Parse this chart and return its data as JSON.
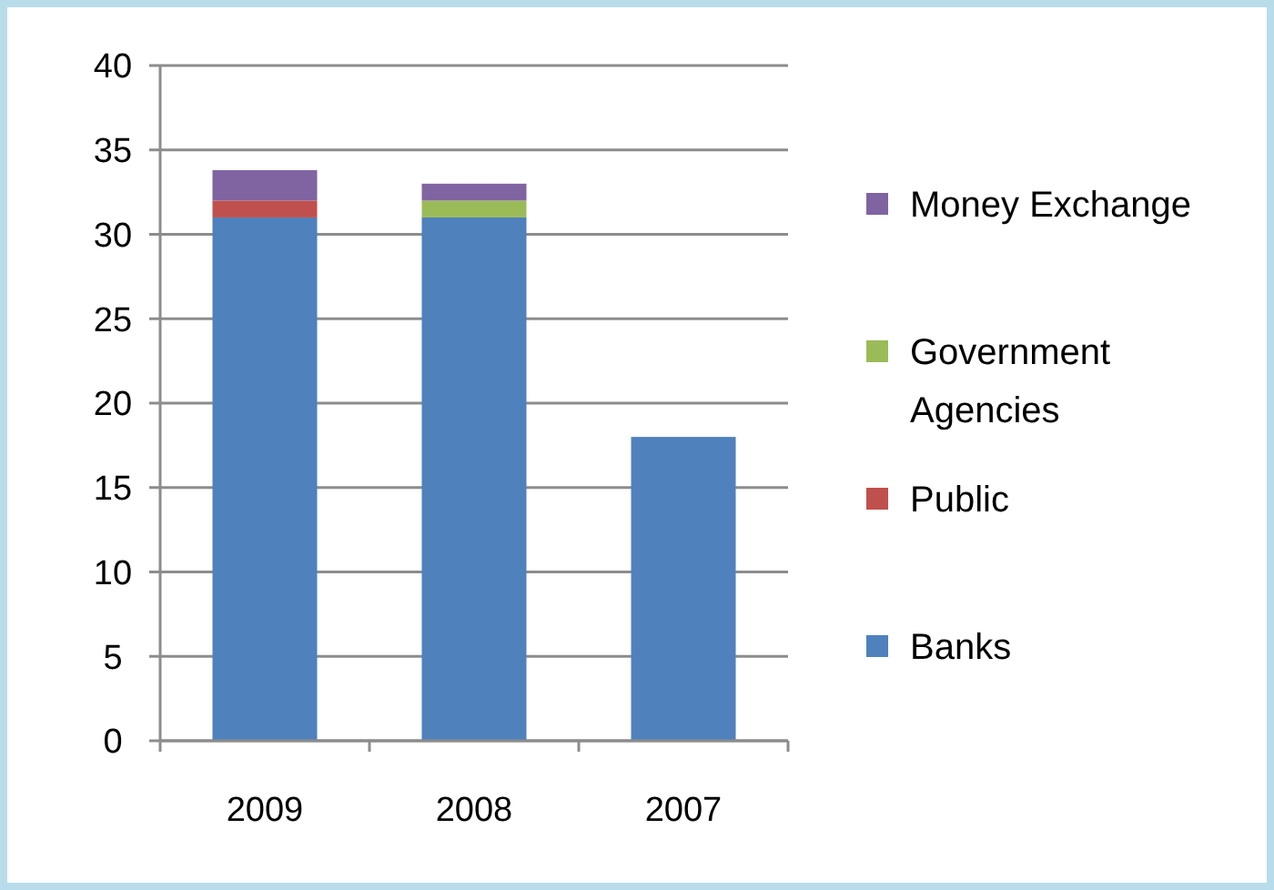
{
  "chart_data": {
    "type": "bar",
    "stacked": true,
    "categories": [
      "2009",
      "2008",
      "2007"
    ],
    "series": [
      {
        "name": "Banks",
        "color": "#4f81bd",
        "values": [
          31,
          31,
          18
        ]
      },
      {
        "name": "Public",
        "color": "#c0504d",
        "values": [
          1,
          0,
          0
        ]
      },
      {
        "name": "Government Agencies",
        "color": "#9bbb59",
        "values": [
          0,
          1,
          0
        ]
      },
      {
        "name": "Money Exchange",
        "color": "#8064a2",
        "values": [
          1.8,
          1,
          0
        ]
      }
    ],
    "ylim": [
      0,
      40
    ],
    "yticks": [
      0,
      5,
      10,
      15,
      20,
      25,
      30,
      35,
      40
    ],
    "grid": "y",
    "legend": "right"
  }
}
